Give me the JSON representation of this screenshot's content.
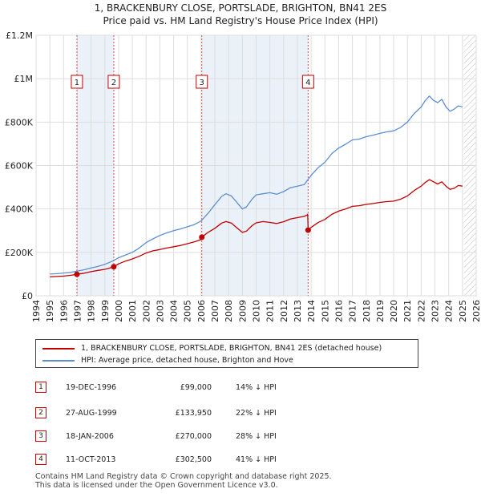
{
  "header": {
    "line1": "1, BRACKENBURY CLOSE, PORTSLADE, BRIGHTON, BN41 2ES",
    "line2": "Price paid vs. HM Land Registry's House Price Index (HPI)"
  },
  "chart_data": {
    "type": "line",
    "title": "1, BRACKENBURY CLOSE, PORTSLADE, BRIGHTON, BN41 2ES — Price paid vs. HM Land Registry's House Price Index (HPI)",
    "xlim": [
      1994,
      2026
    ],
    "ylim": [
      0,
      1200000
    ],
    "y_ticks": [
      0,
      200000,
      400000,
      600000,
      800000,
      1000000,
      1200000
    ],
    "y_tick_labels": [
      "£0",
      "£200K",
      "£400K",
      "£600K",
      "£800K",
      "£1M",
      "£1.2M"
    ],
    "x_ticks": [
      1994,
      1995,
      1996,
      1997,
      1998,
      1999,
      2000,
      2001,
      2002,
      2003,
      2004,
      2005,
      2006,
      2007,
      2008,
      2009,
      2010,
      2011,
      2012,
      2013,
      2014,
      2015,
      2016,
      2017,
      2018,
      2019,
      2020,
      2021,
      2022,
      2023,
      2024,
      2025,
      2026
    ],
    "x_tick_labels": [
      "1994",
      "1995",
      "1996",
      "1997",
      "1998",
      "1999",
      "2000",
      "2001",
      "2002",
      "2003",
      "2004",
      "2005",
      "2006",
      "2007",
      "2008",
      "2009",
      "2010",
      "2011",
      "2012",
      "2013",
      "2014",
      "2015",
      "2016",
      "2017",
      "2018",
      "2019",
      "2020",
      "2021",
      "2022",
      "2023",
      "2024",
      "2025",
      "2026"
    ],
    "grid": true,
    "hpi_color": "#5b8fd0",
    "price_color": "#c00000",
    "series": [
      {
        "name": "HPI: Average price, detached house, Brighton and Hove",
        "color": "#5b8fd0",
        "x": [
          1995.0,
          1995.5,
          1996.0,
          1996.5,
          1997.0,
          1997.5,
          1998.0,
          1998.5,
          1999.0,
          1999.5,
          2000.0,
          2000.5,
          2001.0,
          2001.5,
          2002.0,
          2002.5,
          2003.0,
          2003.5,
          2004.0,
          2004.5,
          2005.0,
          2005.5,
          2006.0,
          2006.5,
          2007.0,
          2007.5,
          2007.8,
          2008.2,
          2008.6,
          2009.0,
          2009.3,
          2009.7,
          2010.0,
          2010.5,
          2011.0,
          2011.5,
          2012.0,
          2012.5,
          2013.0,
          2013.5,
          2014.0,
          2014.5,
          2015.0,
          2015.5,
          2016.0,
          2016.5,
          2017.0,
          2017.5,
          2018.0,
          2018.5,
          2019.0,
          2019.5,
          2020.0,
          2020.5,
          2021.0,
          2021.5,
          2022.0,
          2022.3,
          2022.6,
          2022.9,
          2023.2,
          2023.5,
          2023.8,
          2024.1,
          2024.4,
          2024.7,
          2025.0
        ],
        "values": [
          100000,
          102000,
          105000,
          108000,
          114000,
          120000,
          128000,
          135000,
          145000,
          158000,
          175000,
          188000,
          200000,
          220000,
          245000,
          262000,
          278000,
          290000,
          300000,
          308000,
          318000,
          328000,
          345000,
          380000,
          420000,
          458000,
          470000,
          460000,
          430000,
          400000,
          410000,
          445000,
          465000,
          470000,
          475000,
          468000,
          480000,
          498000,
          505000,
          512000,
          555000,
          590000,
          615000,
          655000,
          680000,
          698000,
          718000,
          722000,
          733000,
          740000,
          748000,
          755000,
          760000,
          775000,
          800000,
          840000,
          870000,
          900000,
          920000,
          900000,
          890000,
          905000,
          870000,
          850000,
          860000,
          875000,
          870000
        ]
      },
      {
        "name": "1, BRACKENBURY CLOSE, PORTSLADE, BRIGHTON, BN41 2ES (detached house)",
        "color": "#c00000",
        "x": [
          1995.0,
          1995.5,
          1996.0,
          1996.5,
          1996.97,
          1997.5,
          1998.0,
          1998.5,
          1999.0,
          1999.3,
          1999.65,
          2000.0,
          2000.5,
          2001.0,
          2001.5,
          2002.0,
          2002.5,
          2003.0,
          2003.5,
          2004.0,
          2004.5,
          2005.0,
          2005.5,
          2005.96,
          2006.05,
          2006.5,
          2007.0,
          2007.5,
          2007.8,
          2008.2,
          2008.6,
          2009.0,
          2009.3,
          2009.7,
          2010.0,
          2010.5,
          2011.0,
          2011.5,
          2012.0,
          2012.5,
          2013.0,
          2013.5,
          2013.7,
          2013.75,
          2013.78,
          2014.0,
          2014.5,
          2015.0,
          2015.5,
          2016.0,
          2016.5,
          2017.0,
          2017.5,
          2018.0,
          2018.5,
          2019.0,
          2019.5,
          2020.0,
          2020.5,
          2021.0,
          2021.5,
          2022.0,
          2022.3,
          2022.6,
          2022.9,
          2023.2,
          2023.5,
          2023.8,
          2024.1,
          2024.4,
          2024.7,
          2025.0
        ],
        "values": [
          87000,
          89000,
          91000,
          94000,
          99000,
          104000,
          111000,
          117000,
          122000,
          127000,
          133950,
          147000,
          160000,
          170000,
          182000,
          197000,
          207000,
          213000,
          220000,
          226000,
          232000,
          240000,
          248000,
          258000,
          270000,
          292000,
          311000,
          335000,
          342000,
          335000,
          313000,
          292000,
          298000,
          323000,
          336000,
          342000,
          338000,
          333000,
          341000,
          354000,
          360000,
          366000,
          372000,
          376000,
          302500,
          315000,
          337000,
          352000,
          375000,
          390000,
          400000,
          412000,
          415000,
          421000,
          425000,
          430000,
          434000,
          436000,
          445000,
          460000,
          485000,
          505000,
          522000,
          535000,
          525000,
          515000,
          525000,
          505000,
          490000,
          495000,
          508000,
          505000
        ]
      }
    ],
    "transactions": [
      {
        "id": "1",
        "x": 1996.97,
        "price": 99000
      },
      {
        "id": "2",
        "x": 1999.65,
        "price": 133950
      },
      {
        "id": "3",
        "x": 2006.05,
        "price": 270000
      },
      {
        "id": "4",
        "x": 2013.78,
        "price": 302500
      }
    ]
  },
  "legend": {
    "property_label": "1, BRACKENBURY CLOSE, PORTSLADE, BRIGHTON, BN41 2ES (detached house)",
    "hpi_label": "HPI: Average price, detached house, Brighton and Hove"
  },
  "table": [
    {
      "num": "1",
      "date": "19-DEC-1996",
      "price": "£99,000",
      "hpi": "14% ↓ HPI"
    },
    {
      "num": "2",
      "date": "27-AUG-1999",
      "price": "£133,950",
      "hpi": "22% ↓ HPI"
    },
    {
      "num": "3",
      "date": "18-JAN-2006",
      "price": "£270,000",
      "hpi": "28% ↓ HPI"
    },
    {
      "num": "4",
      "date": "11-OCT-2013",
      "price": "£302,500",
      "hpi": "41% ↓ HPI"
    }
  ],
  "footer": {
    "line1": "Contains HM Land Registry data © Crown copyright and database right 2025.",
    "line2": "This data is licensed under the Open Government Licence v3.0."
  }
}
